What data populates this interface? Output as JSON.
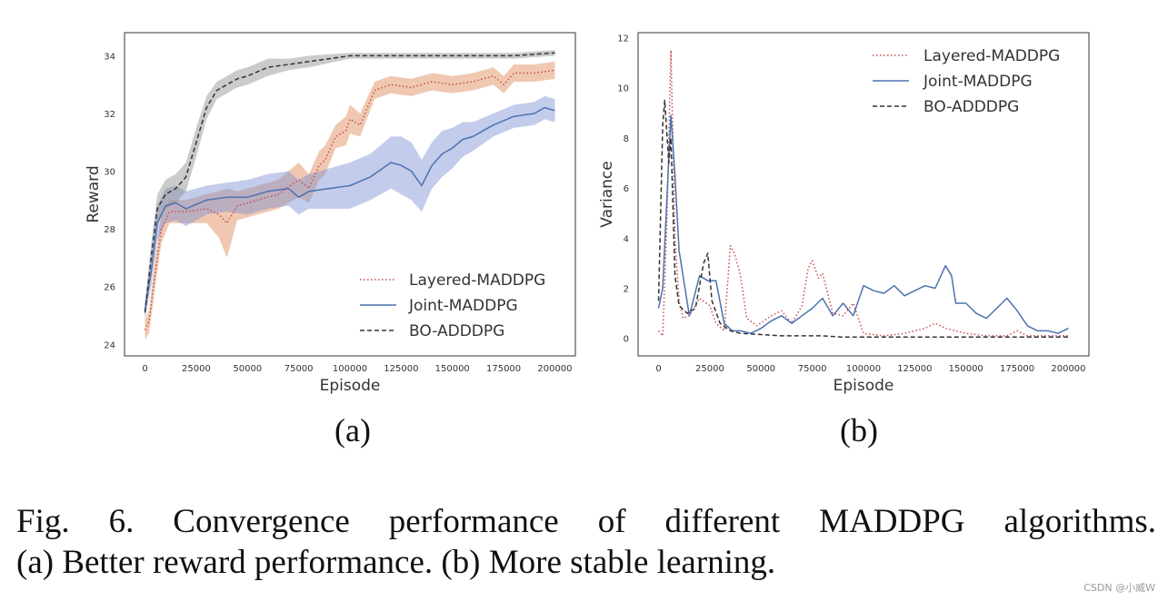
{
  "colors": {
    "layered": "#c44e52",
    "layered_band": "#dd8452",
    "joint": "#4c72b0",
    "joint_band": "#7b8fd0",
    "bo": "#333333",
    "bo_band": "#8c8c8c"
  },
  "chart_data": [
    {
      "type": "line",
      "panel_label": "(a)",
      "xlabel": "Episode",
      "ylabel": "Reward",
      "xlim": [
        -10000,
        210000
      ],
      "ylim": [
        23.6,
        34.8
      ],
      "xticks": [
        "0",
        "25000",
        "50000",
        "75000",
        "100000",
        "125000",
        "150000",
        "175000",
        "200000"
      ],
      "xtick_values": [
        0,
        25000,
        50000,
        75000,
        100000,
        125000,
        150000,
        175000,
        200000
      ],
      "yticks": [
        "24",
        "26",
        "28",
        "30",
        "32",
        "34"
      ],
      "ytick_values": [
        24,
        26,
        28,
        30,
        32,
        34
      ],
      "legend_position": "lower-right",
      "series": [
        {
          "name": "Layered-MADDPG",
          "style": "dotted",
          "color": "#c44e52",
          "band_color": "#dd8452",
          "x": [
            0,
            2000,
            5000,
            8000,
            12000,
            20000,
            30000,
            36000,
            40000,
            45000,
            55000,
            65000,
            75000,
            80000,
            85000,
            88000,
            93000,
            98000,
            100000,
            105000,
            112000,
            120000,
            130000,
            140000,
            150000,
            160000,
            170000,
            175000,
            180000,
            190000,
            200000
          ],
          "values": [
            24.5,
            24.8,
            26.5,
            28.0,
            28.6,
            28.6,
            28.7,
            28.5,
            28.2,
            28.8,
            29.0,
            29.2,
            29.7,
            29.4,
            30.2,
            30.4,
            31.2,
            31.4,
            31.8,
            31.6,
            32.8,
            33.0,
            32.9,
            33.1,
            33.0,
            33.1,
            33.3,
            33.0,
            33.4,
            33.4,
            33.5
          ],
          "band": [
            0.35,
            0.4,
            0.5,
            0.5,
            0.4,
            0.4,
            0.5,
            0.8,
            1.2,
            0.5,
            0.5,
            0.5,
            0.6,
            0.5,
            0.5,
            0.5,
            0.4,
            0.5,
            0.5,
            0.4,
            0.3,
            0.3,
            0.3,
            0.3,
            0.3,
            0.3,
            0.3,
            0.3,
            0.3,
            0.3,
            0.3
          ]
        },
        {
          "name": "Joint-MADDPG",
          "style": "solid",
          "color": "#4c72b0",
          "band_color": "#7b8fd0",
          "x": [
            0,
            3000,
            6000,
            10000,
            15000,
            20000,
            30000,
            40000,
            50000,
            60000,
            70000,
            75000,
            80000,
            90000,
            100000,
            110000,
            120000,
            125000,
            130000,
            135000,
            140000,
            145000,
            150000,
            155000,
            160000,
            170000,
            180000,
            190000,
            195000,
            200000
          ],
          "values": [
            25.2,
            26.5,
            28.2,
            28.8,
            28.9,
            28.7,
            29.0,
            29.1,
            29.1,
            29.3,
            29.4,
            29.1,
            29.3,
            29.4,
            29.5,
            29.8,
            30.3,
            30.2,
            30.0,
            29.5,
            30.2,
            30.6,
            30.8,
            31.1,
            31.2,
            31.6,
            31.9,
            32.0,
            32.2,
            32.1
          ],
          "band": [
            0.3,
            0.5,
            0.6,
            0.6,
            0.6,
            0.6,
            0.5,
            0.5,
            0.6,
            0.6,
            0.6,
            0.6,
            0.6,
            0.7,
            0.8,
            0.8,
            0.9,
            1.0,
            1.0,
            0.9,
            0.8,
            0.8,
            0.7,
            0.6,
            0.5,
            0.4,
            0.4,
            0.4,
            0.4,
            0.4
          ]
        },
        {
          "name": "BO-ADDDPG",
          "style": "dashed",
          "color": "#333333",
          "band_color": "#8c8c8c",
          "x": [
            0,
            3000,
            6000,
            10000,
            15000,
            20000,
            25000,
            30000,
            35000,
            40000,
            45000,
            50000,
            60000,
            70000,
            80000,
            90000,
            100000,
            120000,
            140000,
            160000,
            180000,
            200000
          ],
          "values": [
            25.1,
            27.0,
            28.7,
            29.2,
            29.4,
            29.8,
            31.0,
            32.2,
            32.8,
            33.0,
            33.2,
            33.3,
            33.6,
            33.7,
            33.8,
            33.9,
            34.0,
            34.0,
            34.0,
            34.0,
            34.0,
            34.1
          ],
          "band": [
            0.3,
            0.5,
            0.5,
            0.5,
            0.5,
            0.5,
            0.5,
            0.4,
            0.3,
            0.3,
            0.3,
            0.3,
            0.3,
            0.2,
            0.2,
            0.15,
            0.1,
            0.1,
            0.1,
            0.1,
            0.1,
            0.1
          ]
        }
      ]
    },
    {
      "type": "line",
      "panel_label": "(b)",
      "xlabel": "Episode",
      "ylabel": "Variance",
      "xlim": [
        -10000,
        210000
      ],
      "ylim": [
        -0.7,
        12.2
      ],
      "xticks": [
        "0",
        "25000",
        "50000",
        "75000",
        "100000",
        "125000",
        "150000",
        "175000",
        "200000"
      ],
      "xtick_values": [
        0,
        25000,
        50000,
        75000,
        100000,
        125000,
        150000,
        175000,
        200000
      ],
      "yticks": [
        "0",
        "2",
        "4",
        "6",
        "8",
        "10",
        "12"
      ],
      "ytick_values": [
        0,
        2,
        4,
        6,
        8,
        10,
        12
      ],
      "legend_position": "upper-right",
      "series": [
        {
          "name": "Layered-MADDPG",
          "style": "dotted",
          "color": "#c44e52",
          "x": [
            0,
            2000,
            4000,
            6000,
            7000,
            8000,
            10000,
            12000,
            15000,
            20000,
            25000,
            28000,
            32000,
            35000,
            37000,
            40000,
            43000,
            48000,
            55000,
            60000,
            65000,
            70000,
            73000,
            75000,
            78000,
            80000,
            85000,
            90000,
            95000,
            100000,
            110000,
            120000,
            130000,
            135000,
            140000,
            150000,
            160000,
            170000,
            175000,
            180000,
            190000,
            200000
          ],
          "values": [
            0.3,
            0.1,
            4.5,
            11.5,
            8.0,
            4.0,
            1.5,
            0.8,
            0.9,
            1.6,
            1.3,
            0.6,
            0.3,
            3.7,
            3.4,
            2.5,
            0.8,
            0.5,
            0.9,
            1.1,
            0.6,
            1.3,
            2.8,
            3.1,
            2.4,
            2.6,
            1.0,
            0.9,
            1.4,
            0.2,
            0.1,
            0.2,
            0.4,
            0.6,
            0.4,
            0.2,
            0.1,
            0.1,
            0.3,
            0.1,
            0.1,
            0.1
          ]
        },
        {
          "name": "Joint-MADDPG",
          "style": "solid",
          "color": "#4c72b0",
          "x": [
            0,
            2000,
            4000,
            6000,
            8000,
            10000,
            15000,
            20000,
            24000,
            28000,
            32000,
            36000,
            40000,
            45000,
            50000,
            55000,
            60000,
            65000,
            70000,
            75000,
            80000,
            85000,
            90000,
            95000,
            100000,
            105000,
            110000,
            115000,
            120000,
            125000,
            130000,
            135000,
            140000,
            143000,
            145000,
            150000,
            155000,
            160000,
            165000,
            170000,
            175000,
            180000,
            185000,
            190000,
            195000,
            200000
          ],
          "values": [
            1.2,
            2.0,
            5.5,
            8.9,
            6.5,
            3.5,
            0.9,
            2.5,
            2.3,
            2.3,
            0.6,
            0.3,
            0.3,
            0.2,
            0.4,
            0.7,
            0.9,
            0.6,
            0.9,
            1.2,
            1.6,
            0.9,
            1.4,
            0.9,
            2.1,
            1.9,
            1.8,
            2.1,
            1.7,
            1.9,
            2.1,
            2.0,
            2.9,
            2.5,
            1.4,
            1.4,
            1.0,
            0.8,
            1.2,
            1.6,
            1.1,
            0.5,
            0.3,
            0.3,
            0.2,
            0.4
          ]
        },
        {
          "name": "BO-ADDDPG",
          "style": "dashed",
          "color": "#333333",
          "x": [
            0,
            2000,
            3000,
            5000,
            6000,
            8000,
            10000,
            14000,
            18000,
            22000,
            24000,
            26000,
            30000,
            35000,
            40000,
            50000,
            60000,
            70000,
            80000,
            90000,
            100000,
            120000,
            140000,
            160000,
            180000,
            200000
          ],
          "values": [
            1.5,
            8.5,
            9.5,
            7.0,
            8.0,
            2.5,
            1.3,
            1.0,
            1.2,
            3.0,
            3.4,
            1.5,
            0.6,
            0.3,
            0.2,
            0.15,
            0.1,
            0.1,
            0.1,
            0.05,
            0.05,
            0.05,
            0.05,
            0.05,
            0.05,
            0.05
          ]
        }
      ]
    }
  ],
  "caption": {
    "line1_words": [
      "Fig.",
      "6.",
      "Convergence",
      "performance",
      "of",
      "different",
      "MADDPG",
      "algorithms."
    ],
    "line2": "(a) Better reward performance. (b) More stable learning."
  },
  "watermark": "CSDN @小威W"
}
